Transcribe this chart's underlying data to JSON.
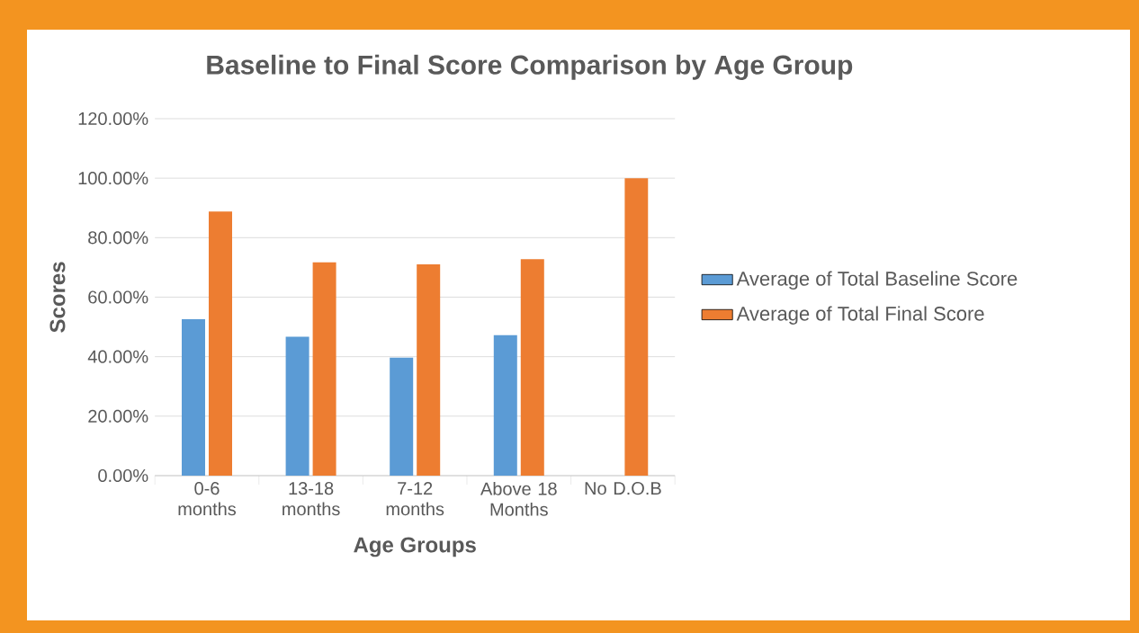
{
  "chart_data": {
    "type": "bar",
    "title": "Baseline to Final Score Comparison by Age Group",
    "xlabel": "Age Groups",
    "ylabel": "Scores",
    "categories": [
      "0-6 months",
      "13-18 months",
      "7-12 months",
      "Above 18 Months",
      "No D.O.B"
    ],
    "series": [
      {
        "name": "Average of Total Baseline Score",
        "color": "#5b9bd5",
        "values": [
          52.6,
          46.7,
          39.7,
          47.2,
          null
        ]
      },
      {
        "name": "Average of Total Final Score",
        "color": "#ed7d31",
        "values": [
          88.8,
          71.7,
          71.0,
          72.8,
          100
        ]
      }
    ],
    "ylim": [
      0,
      120
    ],
    "yticks": [
      {
        "value": 0,
        "label": "0.00%"
      },
      {
        "value": 20,
        "label": "20.00%"
      },
      {
        "value": 40,
        "label": "40.00%"
      },
      {
        "value": 60,
        "label": "60.00%"
      },
      {
        "value": 80,
        "label": "80.00%"
      },
      {
        "value": 100,
        "label": "100.00%"
      },
      {
        "value": 120,
        "label": "120.00%"
      }
    ],
    "grid": "y",
    "legend": "right"
  }
}
